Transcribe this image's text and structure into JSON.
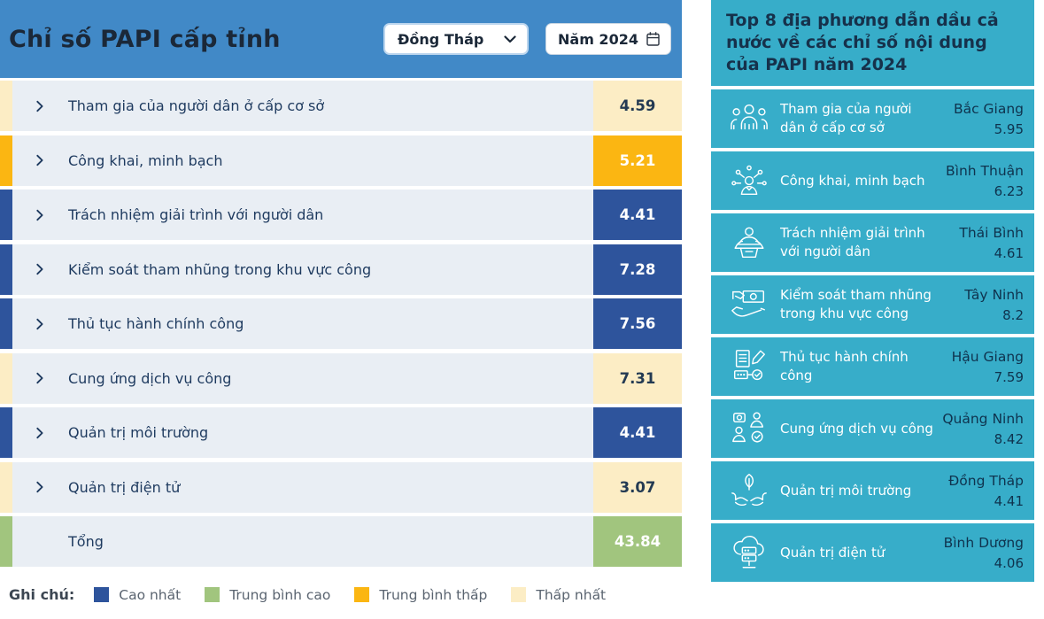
{
  "palette": {
    "header_blue": "#4189c7",
    "panel_teal": "#37adc9",
    "row_body": "#e9eef4",
    "highest": "#2e549c",
    "mid_high": "#a1c57e",
    "mid_low": "#fbb612",
    "lowest": "#fcedc5"
  },
  "left": {
    "title": "Chỉ số PAPI cấp tỉnh",
    "province_dropdown": {
      "value": "Đồng Tháp"
    },
    "year_picker": {
      "value": "Năm 2024"
    },
    "rows": [
      {
        "label": "Tham gia của người dân ở cấp cơ sở",
        "value": "4.59",
        "category": "lowest",
        "has_chevron": true
      },
      {
        "label": "Công khai, minh bạch",
        "value": "5.21",
        "category": "mid_low",
        "has_chevron": true
      },
      {
        "label": "Trách nhiệm giải trình với người dân",
        "value": "4.41",
        "category": "highest",
        "has_chevron": true
      },
      {
        "label": "Kiểm soát tham nhũng trong khu vực công",
        "value": "7.28",
        "category": "highest",
        "has_chevron": true
      },
      {
        "label": "Thủ tục hành chính công",
        "value": "7.56",
        "category": "highest",
        "has_chevron": true
      },
      {
        "label": "Cung ứng dịch vụ công",
        "value": "7.31",
        "category": "lowest",
        "has_chevron": true
      },
      {
        "label": "Quản trị môi trường",
        "value": "4.41",
        "category": "highest",
        "has_chevron": true
      },
      {
        "label": "Quản trị điện tử",
        "value": "3.07",
        "category": "lowest",
        "has_chevron": true
      },
      {
        "label": "Tổng",
        "value": "43.84",
        "category": "mid_high",
        "has_chevron": false
      }
    ],
    "legend": {
      "label": "Ghi chú:",
      "items": [
        {
          "label": "Cao nhất",
          "color": "#2e549c"
        },
        {
          "label": "Trung bình cao",
          "color": "#a1c57e"
        },
        {
          "label": "Trung bình thấp",
          "color": "#fbb612"
        },
        {
          "label": "Thấp nhất",
          "color": "#fcedc5"
        }
      ]
    }
  },
  "right": {
    "title": "Top 8 địa phương dẫn dầu cả nước về các chỉ số nội dung của PAPI năm 2024",
    "rows": [
      {
        "icon": "people-group-icon",
        "label": "Tham gia của người dân ở cấp cơ sở",
        "province": "Bắc Giang",
        "value": "5.95"
      },
      {
        "icon": "person-network-icon",
        "label": "Công khai, minh bạch",
        "province": "Bình Thuận",
        "value": "6.23"
      },
      {
        "icon": "podium-speaker-icon",
        "label": "Trách nhiệm giải trình với người dân",
        "province": "Thái Bình",
        "value": "4.61"
      },
      {
        "icon": "money-hand-icon",
        "label": "Kiểm soát tham nhũng trong khu vực công",
        "province": "Tây Ninh",
        "value": "8.2"
      },
      {
        "icon": "documents-check-icon",
        "label": "Thủ tục hành chính công",
        "province": "Hậu Giang",
        "value": "7.59"
      },
      {
        "icon": "service-people-icon",
        "label": "Cung ứng dịch vụ công",
        "province": "Quảng Ninh",
        "value": "8.42"
      },
      {
        "icon": "hands-leaf-icon",
        "label": "Quản trị môi trường",
        "province": "Đồng Tháp",
        "value": "4.41"
      },
      {
        "icon": "cloud-server-icon",
        "label": "Quản trị điện tử",
        "province": "Bình Dương",
        "value": "4.06"
      }
    ]
  }
}
